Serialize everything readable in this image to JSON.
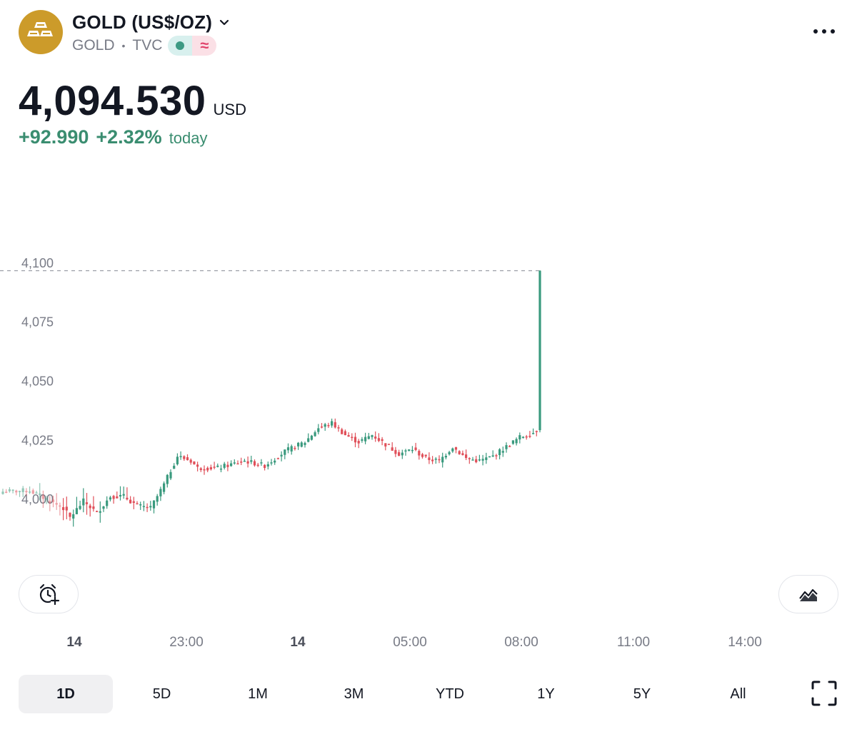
{
  "header": {
    "title": "GOLD (US$/OZ)",
    "symbol": "GOLD",
    "separator": "•",
    "exchange": "TVC",
    "logo_icon": "gold-bars-icon",
    "more_icon": "more-dots-icon"
  },
  "quote": {
    "price": "4,094.530",
    "currency": "USD",
    "change_abs": "+92.990",
    "change_pct": "+2.32%",
    "change_period": "today"
  },
  "colors": {
    "up": "#3a9a7e",
    "down": "#e0505a",
    "accent_gold": "#cc9b2a",
    "change_text": "#3a8d70",
    "axis_text": "#787b86"
  },
  "chart_data": {
    "type": "candlestick",
    "y_ticks": [
      "4,100",
      "4,075",
      "4,050",
      "4,025",
      "4,000"
    ],
    "y_tick_values": [
      4100,
      4075,
      4050,
      4025,
      4000
    ],
    "ylim": [
      3978,
      4106
    ],
    "x_ticks": [
      "14",
      "23:00",
      "14",
      "05:00",
      "08:00",
      "11:00",
      "14:00"
    ],
    "x_ticks_bold": [
      true,
      false,
      true,
      false,
      false,
      false,
      false
    ],
    "last_price": 4096.5,
    "last_price_line": "dashed",
    "grid": false,
    "close_anchors": [
      [
        0,
        4003
      ],
      [
        8,
        4003.5
      ],
      [
        14,
        3999
      ],
      [
        18,
        3996
      ],
      [
        20,
        3992
      ],
      [
        24,
        3999
      ],
      [
        28,
        3994
      ],
      [
        32,
        4001
      ],
      [
        36,
        4001
      ],
      [
        40,
        3997
      ],
      [
        44,
        3996
      ],
      [
        48,
        4006
      ],
      [
        52,
        4018
      ],
      [
        56,
        4016
      ],
      [
        58,
        4013
      ],
      [
        64,
        4013
      ],
      [
        72,
        4016
      ],
      [
        78,
        4014
      ],
      [
        84,
        4020
      ],
      [
        90,
        4024
      ],
      [
        94,
        4030
      ],
      [
        98,
        4032
      ],
      [
        102,
        4027
      ],
      [
        106,
        4024
      ],
      [
        110,
        4027
      ],
      [
        114,
        4023
      ],
      [
        118,
        4019
      ],
      [
        122,
        4021
      ],
      [
        126,
        4017
      ],
      [
        130,
        4016
      ],
      [
        134,
        4022
      ],
      [
        138,
        4017
      ],
      [
        142,
        4016
      ],
      [
        146,
        4018
      ],
      [
        150,
        4022
      ],
      [
        154,
        4026
      ],
      [
        158,
        4028
      ],
      [
        159,
        4029
      ],
      [
        160,
        4096.5
      ]
    ]
  },
  "controls": {
    "alert_icon": "alarm-add-icon",
    "chart_style_icon": "chart-style-icon",
    "fullscreen_icon": "fullscreen-icon"
  },
  "ranges": [
    {
      "label": "1D",
      "active": true
    },
    {
      "label": "5D",
      "active": false
    },
    {
      "label": "1M",
      "active": false
    },
    {
      "label": "3M",
      "active": false
    },
    {
      "label": "YTD",
      "active": false
    },
    {
      "label": "1Y",
      "active": false
    },
    {
      "label": "5Y",
      "active": false
    },
    {
      "label": "All",
      "active": false
    }
  ]
}
